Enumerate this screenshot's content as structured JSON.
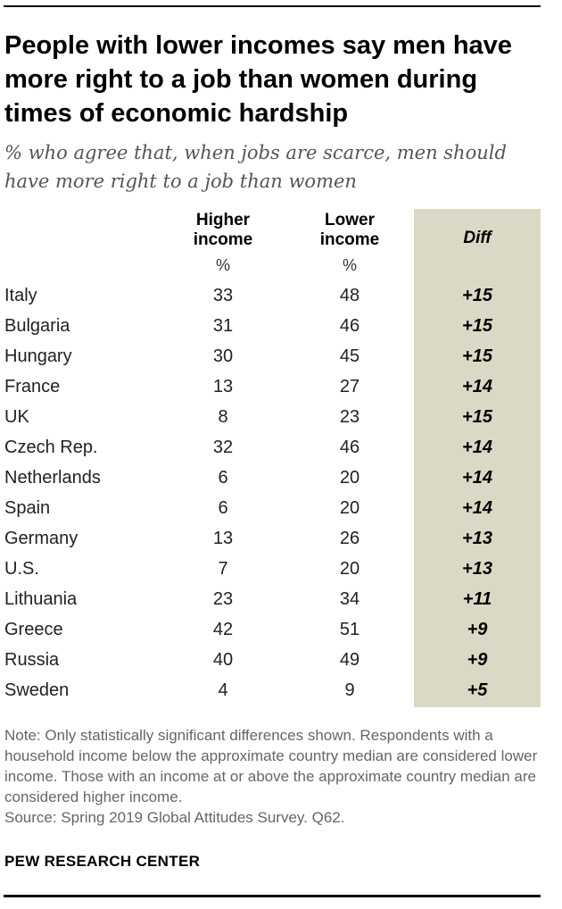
{
  "title": "People with lower incomes say men have more right to a job than women during times of economic hardship",
  "subtitle": "% who agree that, when jobs are scarce, men should have more right to a job than women",
  "colors": {
    "diff_column_bg": "#dcd8c6",
    "note_text": "#666666",
    "subtitle_text": "#555555"
  },
  "chart_data": {
    "type": "table",
    "columns": [
      {
        "label_line1": "Higher",
        "label_line2": "income",
        "unit": "%"
      },
      {
        "label_line1": "Lower",
        "label_line2": "income",
        "unit": "%"
      },
      {
        "label": "Diff"
      }
    ],
    "rows": [
      {
        "country": "Italy",
        "higher": 33,
        "lower": 48,
        "diff": "+15"
      },
      {
        "country": "Bulgaria",
        "higher": 31,
        "lower": 46,
        "diff": "+15"
      },
      {
        "country": "Hungary",
        "higher": 30,
        "lower": 45,
        "diff": "+15"
      },
      {
        "country": "France",
        "higher": 13,
        "lower": 27,
        "diff": "+14"
      },
      {
        "country": "UK",
        "higher": 8,
        "lower": 23,
        "diff": "+15"
      },
      {
        "country": "Czech Rep.",
        "higher": 32,
        "lower": 46,
        "diff": "+14"
      },
      {
        "country": "Netherlands",
        "higher": 6,
        "lower": 20,
        "diff": "+14"
      },
      {
        "country": "Spain",
        "higher": 6,
        "lower": 20,
        "diff": "+14"
      },
      {
        "country": "Germany",
        "higher": 13,
        "lower": 26,
        "diff": "+13"
      },
      {
        "country": "U.S.",
        "higher": 7,
        "lower": 20,
        "diff": "+13"
      },
      {
        "country": "Lithuania",
        "higher": 23,
        "lower": 34,
        "diff": "+11"
      },
      {
        "country": "Greece",
        "higher": 42,
        "lower": 51,
        "diff": "+9"
      },
      {
        "country": "Russia",
        "higher": 40,
        "lower": 49,
        "diff": "+9"
      },
      {
        "country": "Sweden",
        "higher": 4,
        "lower": 9,
        "diff": "+5"
      }
    ]
  },
  "note": {
    "text": "Note: Only statistically significant differences shown. Respondents with a household income below the approximate country median are considered lower income. Those with an income at or above the approximate country median are considered higher income.",
    "source": "Source: Spring 2019 Global Attitudes Survey. Q62."
  },
  "brand": "PEW RESEARCH CENTER"
}
